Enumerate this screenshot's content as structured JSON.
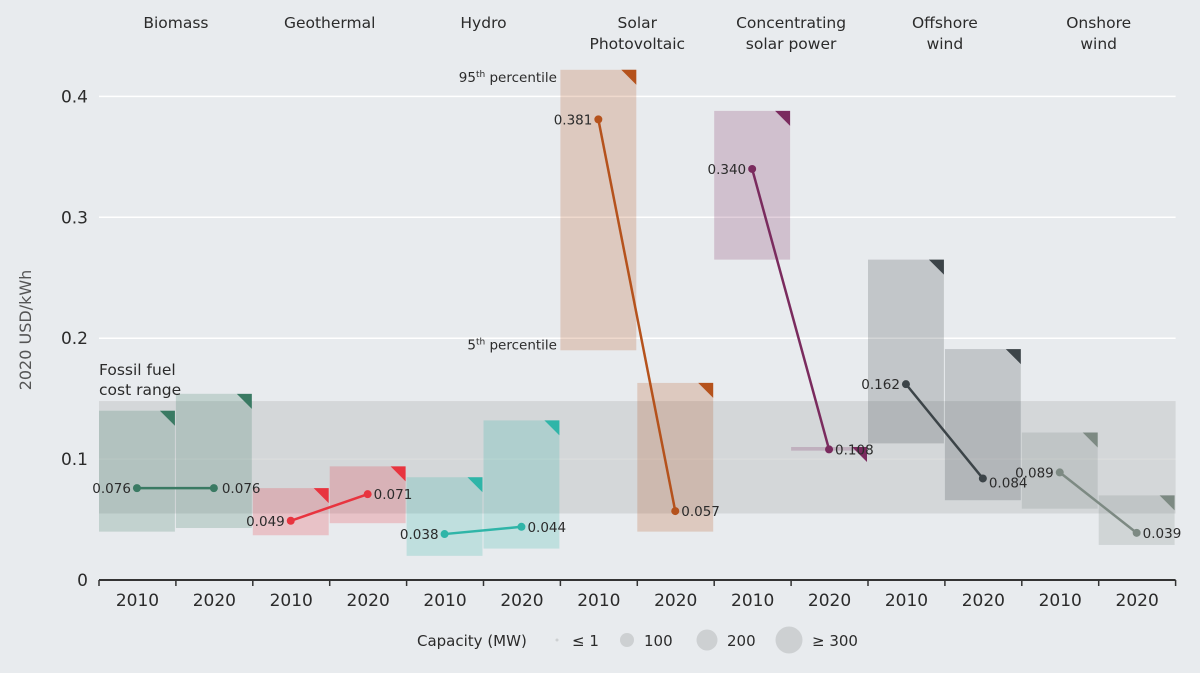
{
  "chart_data": {
    "type": "line",
    "ylabel": "2020 USD/kWh",
    "ylim": [
      0,
      0.45
    ],
    "yticks": [
      "0",
      "0.1",
      "0.2",
      "0.3",
      "0.4"
    ],
    "x_ticks": [
      "2010",
      "2020"
    ],
    "grid": "horizontal",
    "fossil_fuel_range": {
      "label": "Fossil fuel cost range",
      "low": 0.055,
      "high": 0.148
    },
    "percentile_labels": {
      "upper": "95th percentile",
      "lower": "5th percentile"
    },
    "technologies": [
      {
        "name": "Biomass",
        "color": "#3a7a63",
        "bars": [
          {
            "year": "2010",
            "p5": 0.04,
            "p95": 0.14,
            "value": 0.076,
            "label": "0.076"
          },
          {
            "year": "2020",
            "p5": 0.043,
            "p95": 0.154,
            "value": 0.076,
            "label": "0.076"
          }
        ]
      },
      {
        "name": "Geothermal",
        "color": "#e8343f",
        "bars": [
          {
            "year": "2010",
            "p5": 0.037,
            "p95": 0.076,
            "value": 0.049,
            "label": "0.049"
          },
          {
            "year": "2020",
            "p5": 0.047,
            "p95": 0.094,
            "value": 0.071,
            "label": "0.071"
          }
        ]
      },
      {
        "name": "Hydro",
        "color": "#2fb5a8",
        "bars": [
          {
            "year": "2010",
            "p5": 0.02,
            "p95": 0.085,
            "value": 0.038,
            "label": "0.038"
          },
          {
            "year": "2020",
            "p5": 0.026,
            "p95": 0.132,
            "value": 0.044,
            "label": "0.044"
          }
        ]
      },
      {
        "name": "Solar Photovoltaic",
        "color": "#b5521c",
        "bars": [
          {
            "year": "2010",
            "p5": 0.19,
            "p95": 0.422,
            "value": 0.381,
            "label": "0.381"
          },
          {
            "year": "2020",
            "p5": 0.04,
            "p95": 0.163,
            "value": 0.057,
            "label": "0.057"
          }
        ]
      },
      {
        "name": "Concentrating solar power",
        "color": "#7a2b5e",
        "bars": [
          {
            "year": "2010",
            "p5": 0.265,
            "p95": 0.388,
            "value": 0.34,
            "label": "0.340"
          },
          {
            "year": "2020",
            "p5": 0.107,
            "p95": 0.11,
            "value": 0.108,
            "label": "0.108"
          }
        ]
      },
      {
        "name": "Offshore wind",
        "color": "#3c4448",
        "bars": [
          {
            "year": "2010",
            "p5": 0.113,
            "p95": 0.265,
            "value": 0.162,
            "label": "0.162"
          },
          {
            "year": "2020",
            "p5": 0.066,
            "p95": 0.191,
            "value": 0.084,
            "label": "0.084"
          }
        ]
      },
      {
        "name": "Onshore wind",
        "color": "#7d8a83",
        "bars": [
          {
            "year": "2010",
            "p5": 0.059,
            "p95": 0.122,
            "value": 0.089,
            "label": "0.089"
          },
          {
            "year": "2020",
            "p5": 0.029,
            "p95": 0.07,
            "value": 0.039,
            "label": "0.039"
          }
        ]
      }
    ],
    "legend": {
      "title": "Capacity (MW)",
      "items": [
        "≤ 1",
        "100",
        "200",
        "≥ 300"
      ]
    }
  }
}
